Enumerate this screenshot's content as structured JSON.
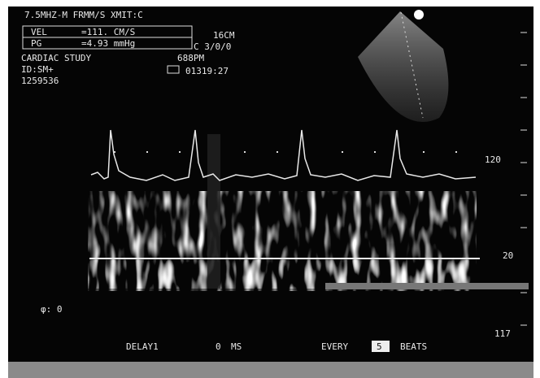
{
  "header": {
    "mode": "7.5MHZ-M  FRMM/S XMIT:C",
    "vel_label": "VEL",
    "vel_value": "=111. CM/S",
    "pg_label": "PG",
    "pg_value": "=4.93 mmHg",
    "depth": "16CM",
    "settings": "C 3/0/0",
    "study": "CARDIAC STUDY",
    "time": "688PM",
    "id": "ID:SM+",
    "clock": "01319:27",
    "number": "1259536"
  },
  "scale": {
    "top": "120",
    "baseline": "20",
    "bottom": "117"
  },
  "footer": {
    "angle": "φ: 0",
    "delay": "DELAY1",
    "delay_value": "0",
    "delay_unit": "MS",
    "every": "EVERY",
    "beats_value": "5",
    "beats": "BEATS"
  }
}
